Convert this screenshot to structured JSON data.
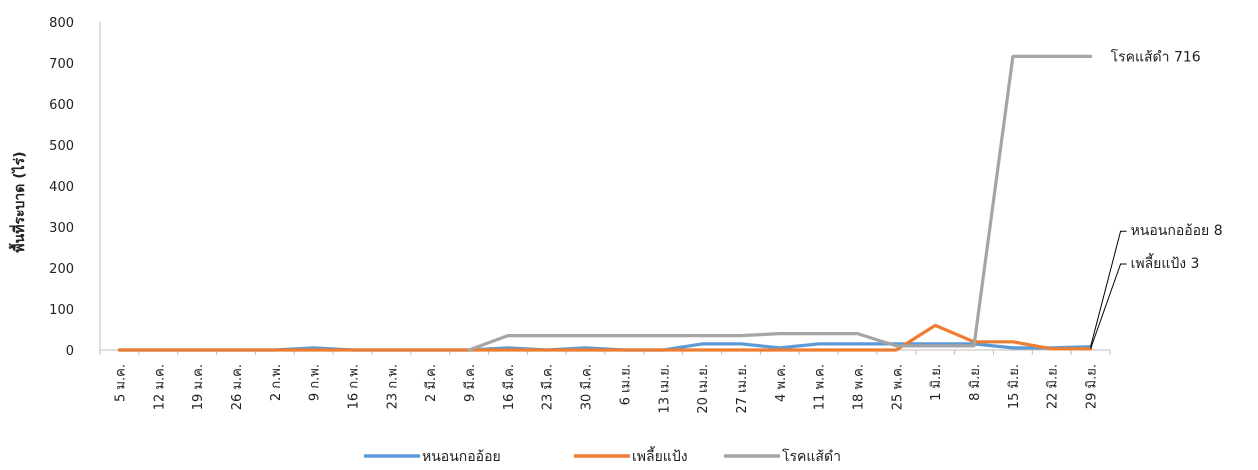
{
  "chart_data": {
    "type": "line",
    "ylabel": "พื้นที่ระบาด (ไร่)",
    "ylim": [
      0,
      800
    ],
    "yticks": [
      0,
      100,
      200,
      300,
      400,
      500,
      600,
      700,
      800
    ],
    "categories": [
      "5 ม.ค.",
      "12 ม.ค.",
      "19 ม.ค.",
      "26 ม.ค.",
      "2 ก.พ.",
      "9 ก.พ.",
      "16 ก.พ.",
      "23 ก.พ.",
      "2 มี.ค.",
      "9 มี.ค.",
      "16 มี.ค.",
      "23 มี.ค.",
      "30 มี.ค.",
      "6 เม.ย.",
      "13 เม.ย.",
      "20 เม.ย.",
      "27 เม.ย.",
      "4 พ.ค.",
      "11 พ.ค.",
      "18 พ.ค.",
      "25 พ.ค.",
      "1 มิ.ย.",
      "8 มิ.ย.",
      "15 มิ.ย.",
      "22 มิ.ย.",
      "29 มิ.ย."
    ],
    "series": [
      {
        "name": "หนอนกออ้อย",
        "color": "#5b9bd5",
        "values": [
          0,
          0,
          0,
          0,
          0,
          5,
          0,
          0,
          0,
          0,
          5,
          0,
          5,
          0,
          0,
          15,
          15,
          5,
          15,
          15,
          15,
          15,
          15,
          5,
          5,
          8
        ]
      },
      {
        "name": "เพลี้ยแป้ง",
        "color": "#ed7d31",
        "values": [
          0,
          0,
          0,
          0,
          0,
          0,
          0,
          0,
          0,
          0,
          0,
          0,
          0,
          0,
          0,
          0,
          0,
          0,
          0,
          0,
          0,
          60,
          20,
          20,
          3,
          3
        ]
      },
      {
        "name": "โรคแส้ดำ",
        "color": "#a5a5a5",
        "values": [
          null,
          null,
          null,
          null,
          null,
          null,
          null,
          null,
          null,
          0,
          35,
          35,
          35,
          35,
          35,
          35,
          35,
          40,
          40,
          40,
          10,
          10,
          10,
          716,
          716,
          716
        ]
      }
    ],
    "annotations": [
      {
        "text": "โรคแส้ดำ 716",
        "series": 2
      },
      {
        "text": "หนอนกออ้อย 8",
        "series": 0
      },
      {
        "text": "เพลี้ยแป้ง 3",
        "series": 1
      }
    ],
    "legend": "bottom",
    "grid": false
  }
}
